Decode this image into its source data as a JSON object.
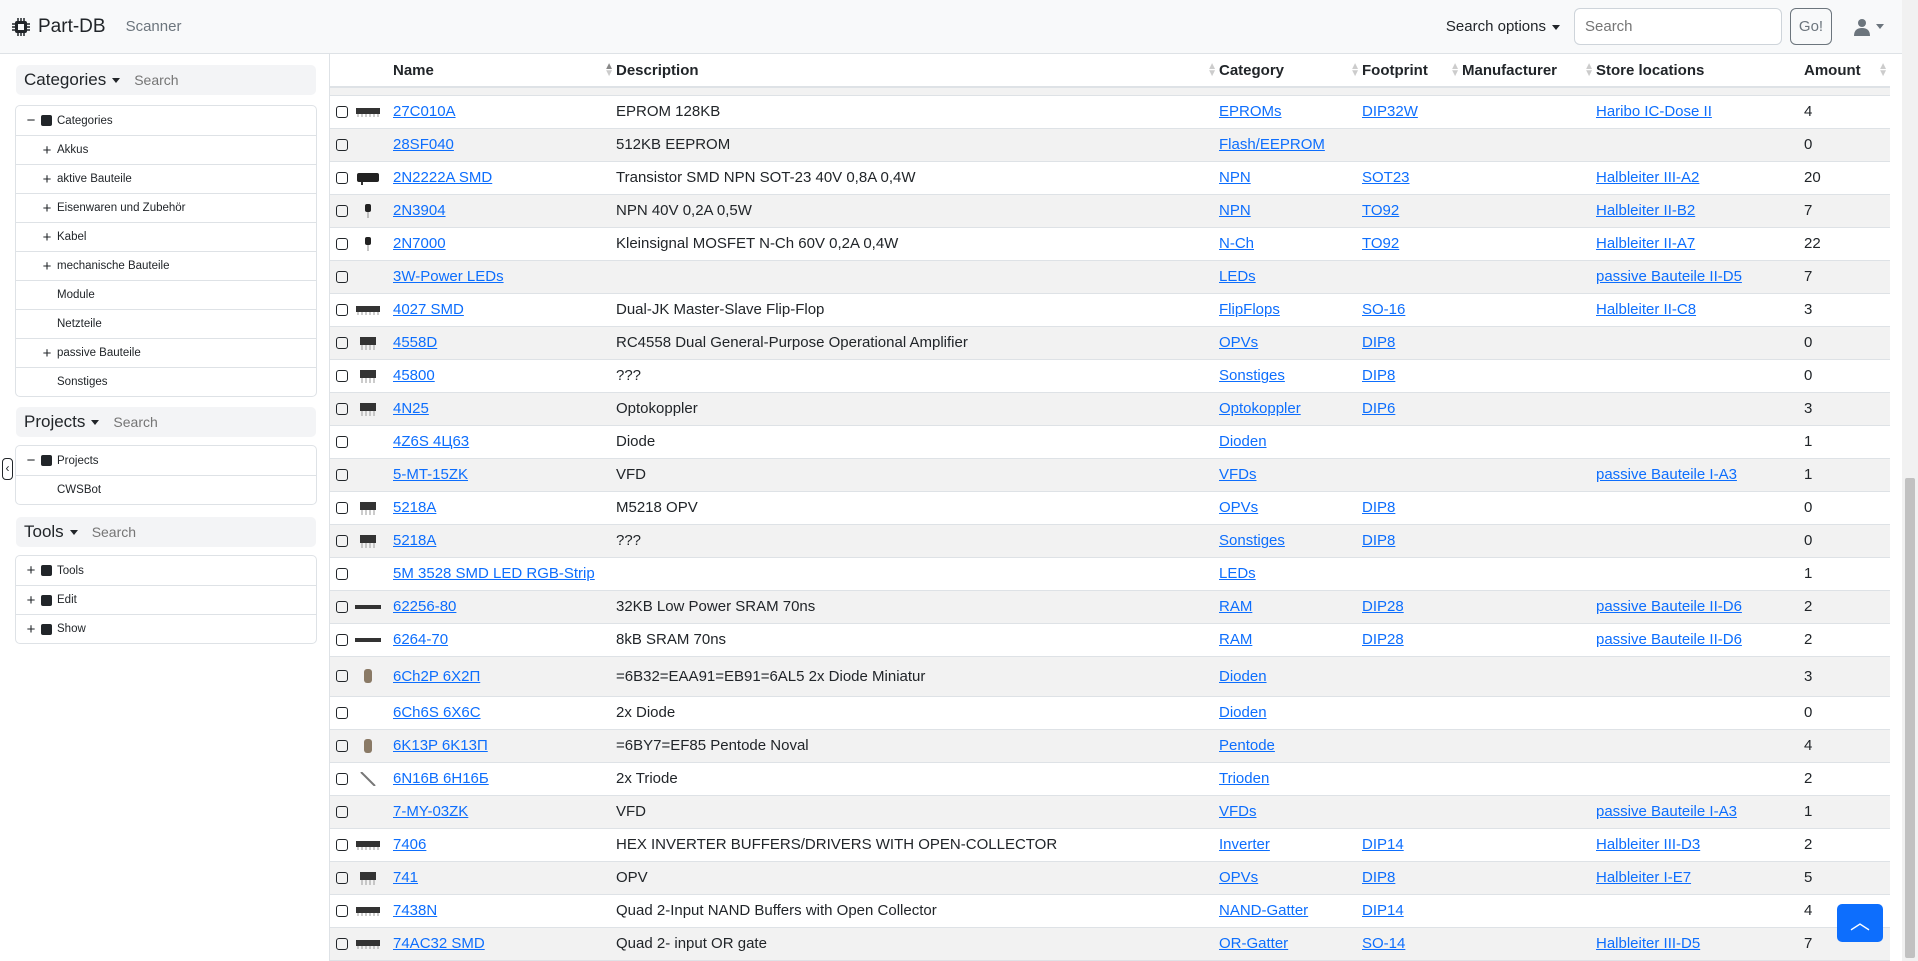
{
  "navbar": {
    "brand": "Part-DB",
    "scanner": "Scanner",
    "search_options": "Search options",
    "search_placeholder": "Search",
    "go": "Go!"
  },
  "sidebar": {
    "categories": {
      "title": "Categories",
      "search_placeholder": "Search",
      "items": [
        {
          "label": "Categories",
          "toggle": "−",
          "root": true
        },
        {
          "label": "Akkus",
          "toggle": "+"
        },
        {
          "label": "aktive Bauteile",
          "toggle": "+"
        },
        {
          "label": "Eisenwaren und Zubehör",
          "toggle": "+"
        },
        {
          "label": "Kabel",
          "toggle": "+"
        },
        {
          "label": "mechanische Bauteile",
          "toggle": "+"
        },
        {
          "label": "Module",
          "toggle": ""
        },
        {
          "label": "Netzteile",
          "toggle": ""
        },
        {
          "label": "passive Bauteile",
          "toggle": "+"
        },
        {
          "label": "Sonstiges",
          "toggle": ""
        }
      ]
    },
    "projects": {
      "title": "Projects",
      "search_placeholder": "Search",
      "items": [
        {
          "label": "Projects",
          "toggle": "−",
          "root": true
        },
        {
          "label": "CWSBot",
          "toggle": ""
        }
      ]
    },
    "tools": {
      "title": "Tools",
      "search_placeholder": "Search",
      "items": [
        {
          "label": "Tools",
          "toggle": "+",
          "root": true
        },
        {
          "label": "Edit",
          "toggle": "+",
          "root": true
        },
        {
          "label": "Show",
          "toggle": "+",
          "root": true
        }
      ]
    }
  },
  "table": {
    "columns": [
      "",
      "",
      "Name",
      "Description",
      "Category",
      "Footprint",
      "Manufacturer",
      "Store locations",
      "Amount"
    ],
    "rows": [
      {
        "thumb": "dip-wide",
        "name": "27C010A",
        "description": "EPROM 128KB",
        "category": "EPROMs",
        "footprint": "DIP32W",
        "manufacturer": "",
        "location": "Haribo IC-Dose II",
        "amount": "4"
      },
      {
        "thumb": "",
        "name": "28SF040",
        "description": "512KB EEPROM",
        "category": "Flash/EEPROM",
        "footprint": "",
        "manufacturer": "",
        "location": "",
        "amount": "0"
      },
      {
        "thumb": "sot",
        "name": "2N2222A SMD",
        "description": "Transistor SMD NPN SOT-23 40V 0,8A 0,4W",
        "category": "NPN",
        "footprint": "SOT23",
        "manufacturer": "",
        "location": "Halbleiter III-A2",
        "amount": "20"
      },
      {
        "thumb": "to92",
        "name": "2N3904",
        "description": "NPN 40V 0,2A 0,5W",
        "category": "NPN",
        "footprint": "TO92",
        "manufacturer": "",
        "location": "Halbleiter II-B2",
        "amount": "7"
      },
      {
        "thumb": "to92",
        "name": "2N7000",
        "description": "Kleinsignal MOSFET N-Ch 60V 0,2A 0,4W",
        "category": "N-Ch",
        "footprint": "TO92",
        "manufacturer": "",
        "location": "Halbleiter II-A7",
        "amount": "22"
      },
      {
        "thumb": "",
        "name": "3W-Power LEDs",
        "description": "",
        "category": "LEDs",
        "footprint": "",
        "manufacturer": "",
        "location": "passive Bauteile II-D5",
        "amount": "7"
      },
      {
        "thumb": "dip-wide",
        "name": "4027 SMD",
        "description": "Dual-JK Master-Slave Flip-Flop",
        "category": "FlipFlops",
        "footprint": "SO-16",
        "manufacturer": "",
        "location": "Halbleiter II-C8",
        "amount": "3"
      },
      {
        "thumb": "dip8",
        "name": "4558D",
        "description": "RC4558 Dual General-Purpose Operational Amplifier",
        "category": "OPVs",
        "footprint": "DIP8",
        "manufacturer": "",
        "location": "",
        "amount": "0"
      },
      {
        "thumb": "dip8",
        "name": "45800",
        "description": "???",
        "category": "Sonstiges",
        "footprint": "DIP8",
        "manufacturer": "",
        "location": "",
        "amount": "0"
      },
      {
        "thumb": "dip8",
        "name": "4N25",
        "description": "Optokoppler",
        "category": "Optokoppler",
        "footprint": "DIP6",
        "manufacturer": "",
        "location": "",
        "amount": "3"
      },
      {
        "thumb": "",
        "name": "4Z6S 4Ц63",
        "description": "Diode",
        "category": "Dioden",
        "footprint": "",
        "manufacturer": "",
        "location": "",
        "amount": "1"
      },
      {
        "thumb": "",
        "name": "5-MT-15ZK",
        "description": "VFD",
        "category": "VFDs",
        "footprint": "",
        "manufacturer": "",
        "location": "passive Bauteile I-A3",
        "amount": "1"
      },
      {
        "thumb": "dip8",
        "name": "5218A",
        "description": "M5218 OPV",
        "category": "OPVs",
        "footprint": "DIP8",
        "manufacturer": "",
        "location": "",
        "amount": "0"
      },
      {
        "thumb": "dip8",
        "name": "5218A",
        "description": "???",
        "category": "Sonstiges",
        "footprint": "DIP8",
        "manufacturer": "",
        "location": "",
        "amount": "0"
      },
      {
        "thumb": "",
        "name": "5M 3528 SMD LED RGB-Strip",
        "description": "",
        "category": "LEDs",
        "footprint": "",
        "manufacturer": "",
        "location": "",
        "amount": "1"
      },
      {
        "thumb": "dip-long",
        "name": "62256-80",
        "description": "32KB Low Power SRAM 70ns",
        "category": "RAM",
        "footprint": "DIP28",
        "manufacturer": "",
        "location": "passive Bauteile II-D6",
        "amount": "2"
      },
      {
        "thumb": "dip-long",
        "name": "6264-70",
        "description": "8kB SRAM 70ns",
        "category": "RAM",
        "footprint": "DIP28",
        "manufacturer": "",
        "location": "passive Bauteile II-D6",
        "amount": "2"
      },
      {
        "thumb": "tube",
        "name": "6Ch2P 6X2П",
        "description": "=6B32=EAA91=EB91=6AL5 2x Diode Miniatur",
        "category": "Dioden",
        "footprint": "",
        "manufacturer": "",
        "location": "",
        "amount": "3"
      },
      {
        "thumb": "",
        "name": "6Ch6S 6X6C",
        "description": "2x Diode",
        "category": "Dioden",
        "footprint": "",
        "manufacturer": "",
        "location": "",
        "amount": "0"
      },
      {
        "thumb": "tube",
        "name": "6K13P 6K13П",
        "description": "=6BY7=EF85 Pentode Noval",
        "category": "Pentode",
        "footprint": "",
        "manufacturer": "",
        "location": "",
        "amount": "4"
      },
      {
        "thumb": "wire",
        "name": "6N16B 6H16Б",
        "description": "2x Triode",
        "category": "Trioden",
        "footprint": "",
        "manufacturer": "",
        "location": "",
        "amount": "2"
      },
      {
        "thumb": "",
        "name": "7-MY-03ZK",
        "description": "VFD",
        "category": "VFDs",
        "footprint": "",
        "manufacturer": "",
        "location": "passive Bauteile I-A3",
        "amount": "1"
      },
      {
        "thumb": "dip-wide",
        "name": "7406",
        "description": "HEX INVERTER BUFFERS/DRIVERS WITH OPEN-COLLECTOR",
        "category": "Inverter",
        "footprint": "DIP14",
        "manufacturer": "",
        "location": "Halbleiter III-D3",
        "amount": "2"
      },
      {
        "thumb": "dip8",
        "name": "741",
        "description": "OPV",
        "category": "OPVs",
        "footprint": "DIP8",
        "manufacturer": "",
        "location": "Halbleiter I-E7",
        "amount": "5"
      },
      {
        "thumb": "dip-wide",
        "name": "7438N",
        "description": "Quad 2-Input NAND Buffers with Open Collector",
        "category": "NAND-Gatter",
        "footprint": "DIP14",
        "manufacturer": "",
        "location": "",
        "amount": "4"
      },
      {
        "thumb": "dip-wide",
        "name": "74AC32 SMD",
        "description": "Quad 2- input OR gate",
        "category": "OR-Gatter",
        "footprint": "SO-14",
        "manufacturer": "",
        "location": "Halbleiter III-D5",
        "amount": "7"
      }
    ]
  },
  "colors": {
    "link": "#0d6efd",
    "accent": "#0d6efd",
    "stripe": "#f2f2f2"
  }
}
